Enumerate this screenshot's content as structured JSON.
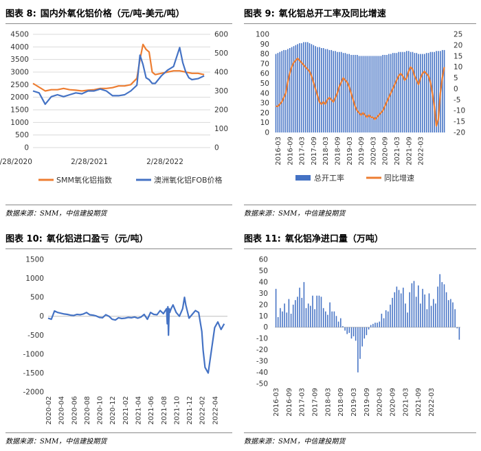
{
  "charts": [
    {
      "fig_label": "图表 8:",
      "title": "国内外氧化铝价格（元/吨-美元/吨）",
      "source": "数据来源：SMM，中信建投期货",
      "chart_data": {
        "type": "line",
        "x_ticks": [
          "2/28/2020",
          "2/28/2021",
          "2/28/2022"
        ],
        "y_left_ticks": [
          "0",
          "500",
          "1000",
          "1500",
          "2000",
          "2500",
          "3000",
          "3500",
          "4000",
          "4500"
        ],
        "y_right_ticks": [
          "0",
          "100",
          "200",
          "300",
          "400",
          "500",
          "600"
        ],
        "ylim_left": [
          0,
          4500
        ],
        "ylim_right": [
          0,
          600
        ],
        "xlim": [
          0,
          29
        ],
        "legend": "bottom",
        "series": [
          {
            "name": "SMM氧化铝指数",
            "axis": "left",
            "color": "#ED7D31",
            "x": [
              0,
              1,
              2,
              3,
              4,
              5,
              6,
              7,
              8,
              9,
              10,
              11,
              12,
              13,
              14,
              15,
              16,
              17,
              17.5,
              18,
              18.5,
              19,
              19.5,
              20,
              21,
              22,
              23,
              24,
              25,
              26,
              27,
              28
            ],
            "values": [
              2550,
              2400,
              2250,
              2300,
              2300,
              2350,
              2300,
              2280,
              2250,
              2280,
              2300,
              2350,
              2350,
              2380,
              2450,
              2450,
              2500,
              2750,
              3500,
              4100,
              3900,
              3800,
              3000,
              2900,
              2950,
              3000,
              3050,
              3050,
              3000,
              2950,
              2950,
              2900
            ]
          },
          {
            "name": "澳洲氧化铝FOB价格",
            "axis": "right",
            "color": "#4472C4",
            "x": [
              0,
              1,
              2,
              3,
              4,
              5,
              6,
              7,
              8,
              9,
              10,
              11,
              12,
              13,
              14,
              15,
              16,
              17,
              17.5,
              18,
              18.5,
              19,
              19.5,
              20,
              21,
              22,
              23,
              24,
              24.5,
              25,
              25.5,
              26,
              27,
              28
            ],
            "values": [
              300,
              290,
              230,
              270,
              280,
              270,
              280,
              290,
              285,
              300,
              300,
              310,
              300,
              275,
              275,
              280,
              300,
              330,
              490,
              440,
              370,
              360,
              340,
              340,
              380,
              410,
              430,
              530,
              450,
              400,
              370,
              360,
              365,
              380
            ]
          }
        ]
      }
    },
    {
      "fig_label": "图表 9:",
      "title": "氧化铝总开工率及同比增速",
      "source": "数据来源：SMM，中信建投期货",
      "chart_data": {
        "type": "bar",
        "x_ticks": [
          "2016-03",
          "2016-09",
          "2017-03",
          "2017-09",
          "2018-03",
          "2018-09",
          "2019-03",
          "2019-09",
          "2020-03",
          "2020-09",
          "2021-03",
          "2021-09",
          "2022-03"
        ],
        "y_left_ticks": [
          "0",
          "10",
          "20",
          "30",
          "40",
          "50",
          "60",
          "70",
          "80",
          "90",
          "100"
        ],
        "y_right_ticks": [
          "-20",
          "-15",
          "-10",
          "-5",
          "0",
          "5",
          "10",
          "15",
          "20",
          "25"
        ],
        "ylim_left": [
          0,
          100
        ],
        "ylim_right": [
          -20,
          25
        ],
        "legend": "bottom",
        "series": [
          {
            "name": "总开工率",
            "type": "bar",
            "axis": "left",
            "color": "#4472C4",
            "values": [
              80,
              81,
              82,
              83,
              84,
              84,
              85,
              86,
              87,
              88,
              89,
              90,
              91,
              91,
              92,
              92,
              92,
              91,
              90,
              89,
              88,
              87,
              87,
              86,
              86,
              85,
              85,
              84,
              84,
              83,
              83,
              82,
              82,
              82,
              81,
              81,
              80,
              80,
              79,
              79,
              79,
              79,
              78,
              78,
              78,
              78,
              78,
              78,
              78,
              78,
              78,
              78,
              78,
              78,
              79,
              79,
              79,
              80,
              80,
              81,
              81,
              81,
              82,
              82,
              82,
              82,
              83,
              83,
              82,
              82,
              81,
              81,
              80,
              80,
              80,
              80,
              81,
              81,
              82,
              82,
              82,
              83,
              83,
              83,
              84,
              84
            ]
          },
          {
            "name": "同比增速",
            "type": "line",
            "axis": "right",
            "color": "#ED7D31",
            "values": [
              -8,
              -8,
              -7,
              -6,
              -4,
              -2,
              3,
              7,
              10,
              12,
              13,
              14,
              13,
              12,
              11,
              10,
              9,
              8,
              6,
              3,
              0,
              -3,
              -6,
              -7,
              -6,
              -7,
              -5,
              -4,
              -5,
              -6,
              -4,
              -2,
              1,
              3,
              5,
              4,
              3,
              1,
              -2,
              -5,
              -8,
              -10,
              -11,
              -12,
              -11,
              -12,
              -13,
              -12,
              -13,
              -13,
              -14,
              -13,
              -12,
              -11,
              -10,
              -8,
              -6,
              -4,
              -2,
              0,
              2,
              4,
              6,
              7,
              6,
              4,
              5,
              8,
              10,
              9,
              6,
              4,
              2,
              5,
              7,
              8,
              7,
              6,
              3,
              -2,
              -8,
              -17,
              -14,
              -2,
              5,
              10
            ]
          }
        ]
      }
    },
    {
      "fig_label": "图表 10:",
      "title": "氧化铝进口盈亏（元/吨）",
      "source": "数据来源：SMM，中信建投期货",
      "chart_data": {
        "type": "line",
        "x_ticks": [
          "2020-02",
          "2020-04",
          "2020-06",
          "2020-08",
          "2020-10",
          "2020-12",
          "2021-02",
          "2021-04",
          "2021-06",
          "2021-08",
          "2021-10",
          "2021-12",
          "2022-02",
          "2022-04"
        ],
        "y_ticks": [
          "-2000",
          "-1500",
          "-1000",
          "-500",
          "0",
          "500",
          "1000",
          "1500"
        ],
        "ylim": [
          -2000,
          1500
        ],
        "series": [
          {
            "name": "",
            "color": "#4472C4",
            "x": [
              0,
              0.5,
              1,
              1.5,
              2,
              2.5,
              3,
              3.5,
              4,
              4.5,
              5,
              5.5,
              6,
              6.5,
              7,
              7.5,
              8,
              8.5,
              9,
              9.5,
              10,
              10.5,
              11,
              11.5,
              12,
              12.5,
              13,
              13.5,
              14,
              14.5,
              15,
              15.5,
              16,
              16.5,
              17,
              17.5,
              18,
              18.5,
              18.6,
              18.7,
              18.8,
              18.9,
              19,
              19.2,
              19.5,
              20,
              20.5,
              21,
              21.3,
              21.5,
              22,
              22.5,
              23,
              23.5,
              24,
              24.2,
              24.5,
              25,
              25.5,
              26,
              26.5,
              27,
              27.5
            ],
            "values": [
              -50,
              -80,
              140,
              100,
              80,
              60,
              50,
              30,
              20,
              50,
              40,
              60,
              100,
              40,
              30,
              10,
              -30,
              -40,
              40,
              0,
              -80,
              -100,
              -40,
              -60,
              -50,
              -30,
              -40,
              -20,
              -50,
              -20,
              50,
              -80,
              100,
              50,
              40,
              150,
              70,
              200,
              -200,
              250,
              -500,
              200,
              100,
              200,
              300,
              100,
              0,
              200,
              500,
              300,
              -50,
              50,
              150,
              100,
              -400,
              -900,
              -1350,
              -1500,
              -900,
              -300,
              -150,
              -350,
              -200
            ]
          }
        ]
      }
    },
    {
      "fig_label": "图表 11:",
      "title": "氧化铝净进口量（万吨）",
      "source": "数据来源：SMM，中信建投期货",
      "chart_data": {
        "type": "bar",
        "x_ticks": [
          "2016-03",
          "2016-09",
          "2017-03",
          "2017-09",
          "2018-03",
          "2018-09",
          "2019-03",
          "2019-09",
          "2020-03",
          "2020-09",
          "2021-03",
          "2021-09",
          "2022-03"
        ],
        "y_ticks": [
          "-50",
          "-40",
          "-30",
          "-20",
          "-10",
          "0",
          "10",
          "20",
          "30",
          "40",
          "50",
          "60"
        ],
        "ylim": [
          -50,
          60
        ],
        "series": [
          {
            "name": "",
            "color": "#4472C4",
            "values": [
              34,
              9,
              17,
              14,
              21,
              13,
              25,
              12,
              20,
              24,
              27,
              35,
              26,
              40,
              17,
              21,
              19,
              28,
              16,
              28,
              28,
              27,
              17,
              14,
              11,
              22,
              14,
              14,
              10,
              5,
              8,
              1,
              -3,
              -6,
              -5,
              -10,
              -8,
              -12,
              -40,
              -28,
              -17,
              -10,
              -7,
              -2,
              2,
              3,
              4,
              4,
              5,
              12,
              8,
              15,
              14,
              20,
              26,
              31,
              36,
              33,
              30,
              35,
              21,
              13,
              31,
              39,
              41,
              27,
              37,
              21,
              34,
              29,
              16,
              30,
              19,
              25,
              21,
              36,
              47,
              40,
              38,
              31,
              24,
              25,
              22,
              16,
              -1,
              -11
            ]
          }
        ]
      }
    }
  ]
}
